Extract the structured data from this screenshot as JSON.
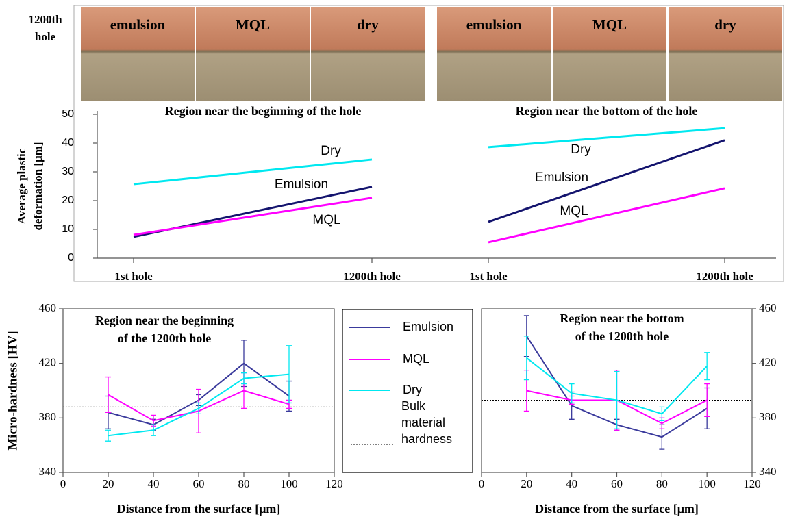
{
  "photo_strip": {
    "label": [
      "1200th",
      "hole"
    ],
    "panels": [
      "emulsion",
      "MQL",
      "dry",
      "emulsion",
      "MQL",
      "dry"
    ]
  },
  "chart_data": [
    {
      "type": "line",
      "title": "Region near the beginning of the hole",
      "y_label": [
        "Average plastic",
        "deformation [μm]"
      ],
      "categories": [
        "1st hole",
        "1200th hole"
      ],
      "ylim": [
        0,
        50
      ],
      "yticks": [
        0,
        10,
        20,
        30,
        40,
        50
      ],
      "series": [
        {
          "name": "Dry",
          "color": "#00e8f0",
          "values": [
            25.7,
            34.3
          ]
        },
        {
          "name": "Emulsion",
          "color": "#14146e",
          "values": [
            7.4,
            24.8
          ]
        },
        {
          "name": "MQL",
          "color": "#ff00ff",
          "values": [
            8.1,
            21
          ]
        }
      ]
    },
    {
      "type": "line",
      "title": "Region near the bottom of the hole",
      "categories": [
        "1st hole",
        "1200th hole"
      ],
      "ylim": [
        0,
        50
      ],
      "series": [
        {
          "name": "Dry",
          "color": "#00e8f0",
          "values": [
            38.6,
            45.2
          ]
        },
        {
          "name": "Emulsion",
          "color": "#14146e",
          "values": [
            12.6,
            41
          ]
        },
        {
          "name": "MQL",
          "color": "#ff00ff",
          "values": [
            5.5,
            24.3
          ]
        }
      ]
    },
    {
      "type": "errorline",
      "title": [
        "Region near the beginning",
        "of the 1200th hole"
      ],
      "x_label": "Distance from the surface [μm]",
      "y_label": "Micro-hardness [HV]",
      "x": [
        20,
        40,
        60,
        80,
        100
      ],
      "xlim": [
        0,
        120
      ],
      "xticks": [
        0,
        20,
        40,
        60,
        80,
        100,
        120
      ],
      "ylim": [
        340,
        460
      ],
      "yticks": [
        340,
        380,
        420,
        460
      ],
      "y_axis_side": "left",
      "series": [
        {
          "name": "Emulsion",
          "color": "#3a3a9c",
          "values": [
            384,
            375,
            393,
            420,
            396
          ],
          "errors": [
            12,
            4,
            4,
            17,
            11
          ]
        },
        {
          "name": "MQL",
          "color": "#ff00ff",
          "values": [
            397,
            378,
            385,
            400,
            390
          ],
          "errors": [
            13,
            4,
            16,
            13,
            3
          ]
        },
        {
          "name": "Dry",
          "color": "#00e8f0",
          "values": [
            367,
            371,
            387,
            409,
            412
          ],
          "errors": [
            4,
            4,
            4,
            4,
            21
          ]
        }
      ],
      "reference_line": {
        "label": [
          "Bulk",
          "material",
          "hardness"
        ],
        "value": 388
      }
    },
    {
      "type": "errorline",
      "title": [
        "Region near the bottom",
        "of the 1200th hole"
      ],
      "x_label": "Distance from the surface [μm]",
      "x": [
        20,
        40,
        60,
        80,
        100
      ],
      "xlim": [
        0,
        120
      ],
      "xticks": [
        0,
        20,
        40,
        60,
        80,
        100,
        120
      ],
      "ylim": [
        340,
        460
      ],
      "yticks": [
        340,
        380,
        420,
        460
      ],
      "y_axis_side": "right",
      "series": [
        {
          "color": "#3a3a9c",
          "values": [
            440,
            389,
            375,
            366,
            387
          ],
          "errors": [
            15,
            10,
            4,
            9,
            15
          ]
        },
        {
          "color": "#ff00ff",
          "values": [
            400,
            393,
            393,
            376,
            393
          ],
          "errors": [
            15,
            3,
            22,
            4,
            12
          ]
        },
        {
          "color": "#00e8f0",
          "values": [
            424,
            398,
            393,
            383,
            418
          ],
          "errors": [
            16,
            7,
            21,
            5,
            10
          ]
        }
      ],
      "reference_line": {
        "value": 393
      }
    }
  ]
}
